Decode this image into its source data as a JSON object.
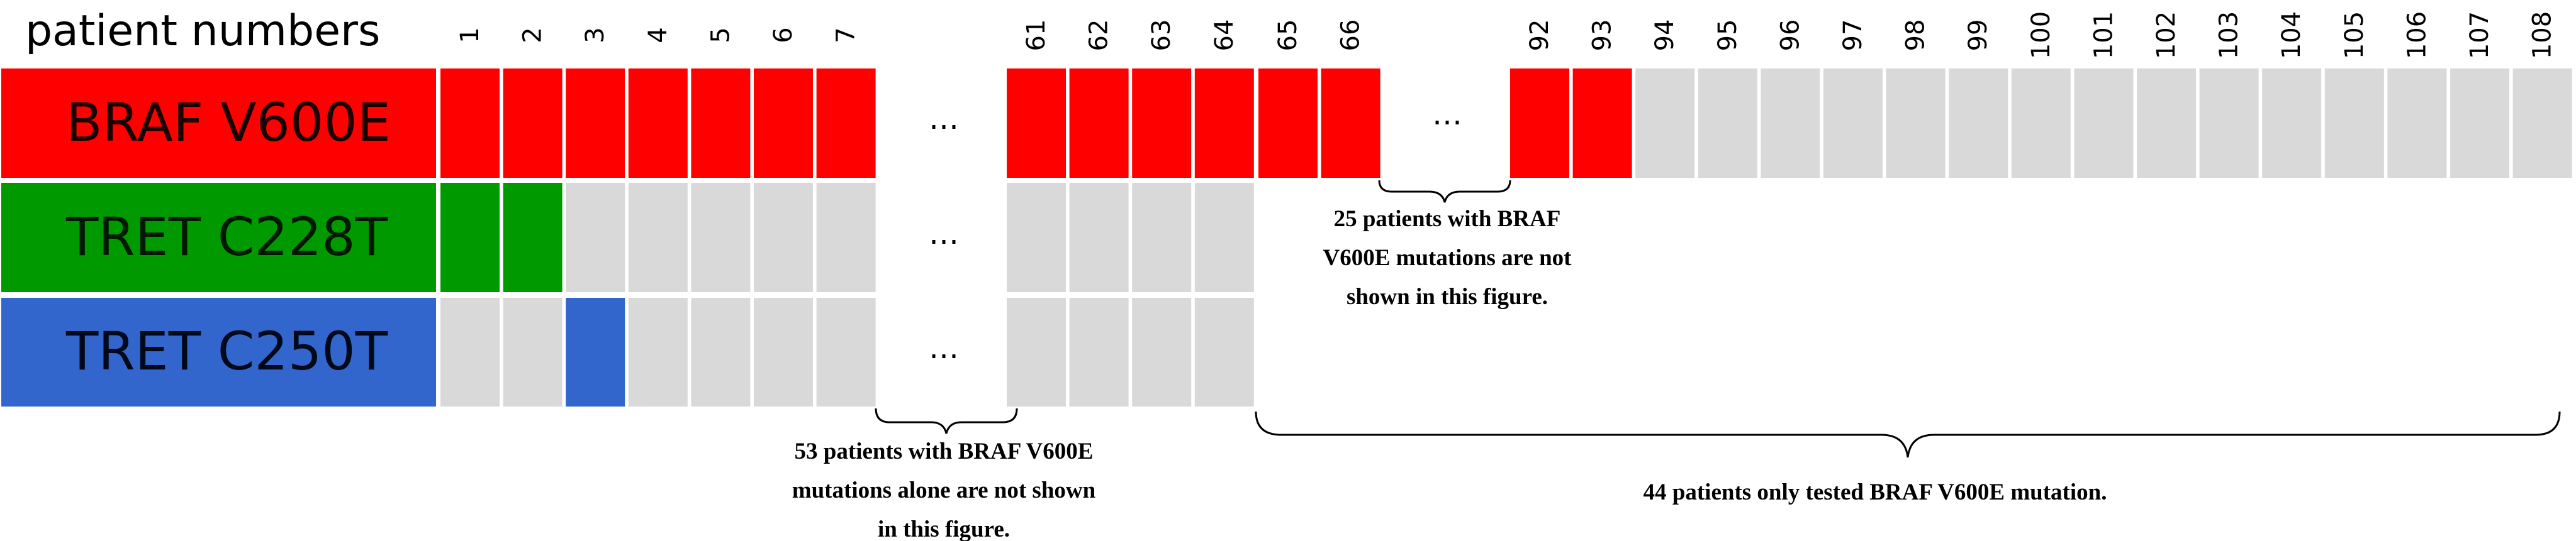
{
  "header": {
    "title": "patient numbers"
  },
  "rows": [
    {
      "id": "braf",
      "label": "BRAF V600E",
      "color": "#ff0000"
    },
    {
      "id": "tc228",
      "label": "TRET C228T",
      "color": "#009900"
    },
    {
      "id": "tc250",
      "label": "TRET C250T",
      "color": "#3366cc"
    }
  ],
  "colors": {
    "negative": "#d9d9d9",
    "braf_positive": "#ff0000",
    "c228_positive": "#009900",
    "c250_positive": "#3366cc"
  },
  "groups": [
    {
      "patients": [
        "1",
        "2",
        "3",
        "4",
        "5",
        "6",
        "7"
      ],
      "braf": [
        1,
        1,
        1,
        1,
        1,
        1,
        1
      ],
      "tc228": [
        1,
        1,
        0,
        0,
        0,
        0,
        0
      ],
      "tc250": [
        0,
        0,
        1,
        0,
        0,
        0,
        0
      ]
    },
    {
      "patients": [
        "61",
        "62",
        "63",
        "64"
      ],
      "braf": [
        1,
        1,
        1,
        1
      ],
      "tc228": [
        0,
        0,
        0,
        0
      ],
      "tc250": [
        0,
        0,
        0,
        0
      ]
    },
    {
      "patients": [
        "65",
        "66"
      ],
      "braf": [
        1,
        1
      ]
    },
    {
      "patients": [
        "92",
        "93",
        "94",
        "95",
        "96",
        "97",
        "98",
        "99",
        "100",
        "101",
        "102",
        "103",
        "104",
        "105",
        "106",
        "107",
        "108"
      ],
      "braf": [
        1,
        1,
        0,
        0,
        0,
        0,
        0,
        0,
        0,
        0,
        0,
        0,
        0,
        0,
        0,
        0,
        0
      ]
    }
  ],
  "ellipsis": "…",
  "notes": {
    "note_25": [
      "25 patients with BRAF",
      "V600E mutations are not",
      "shown in this figure."
    ],
    "note_53": [
      "53 patients with BRAF V600E",
      "mutations alone are not shown",
      "in this figure."
    ],
    "note_44": [
      "44 patients only tested  BRAF V600E mutation."
    ]
  }
}
